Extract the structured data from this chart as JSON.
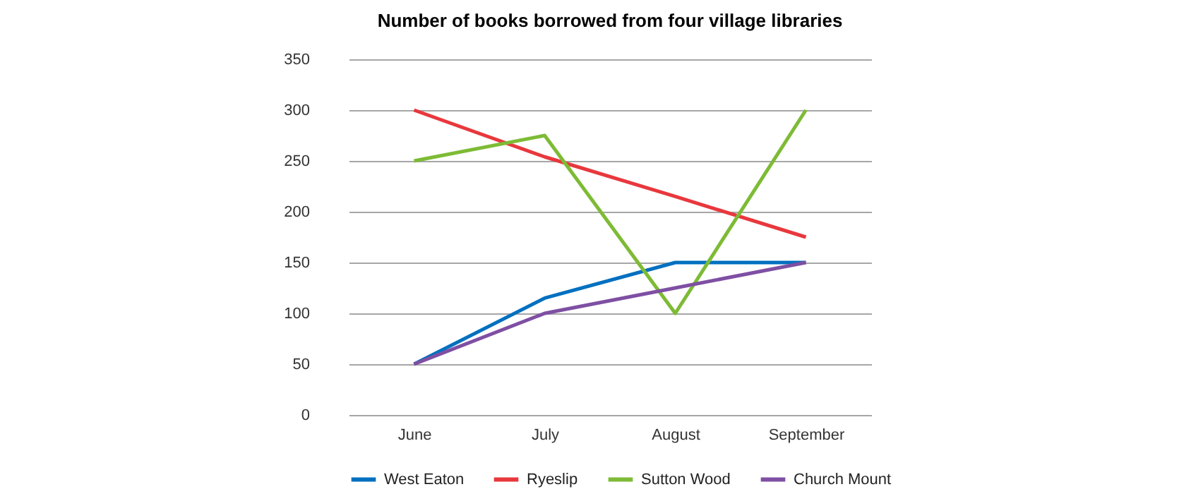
{
  "chart_data": {
    "type": "line",
    "title": "Number of books borrowed from four village libraries",
    "categories": [
      "June",
      "July",
      "August",
      "September"
    ],
    "series": [
      {
        "name": "West Eaton",
        "color": "#0070c0",
        "values": [
          50,
          115,
          150,
          150
        ]
      },
      {
        "name": "Ryeslip",
        "color": "#e8383d",
        "values": [
          300,
          254,
          215,
          175
        ]
      },
      {
        "name": "Sutton Wood",
        "color": "#7dbb35",
        "values": [
          250,
          275,
          100,
          300
        ]
      },
      {
        "name": "Church Mount",
        "color": "#7e4fa3",
        "values": [
          50,
          100,
          125,
          150
        ]
      }
    ],
    "ylim": [
      0,
      350
    ],
    "yticks": [
      0,
      50,
      100,
      150,
      200,
      250,
      300,
      350
    ],
    "grid": "y",
    "legend": "bottom",
    "marker": "none",
    "line_style": "solid"
  }
}
